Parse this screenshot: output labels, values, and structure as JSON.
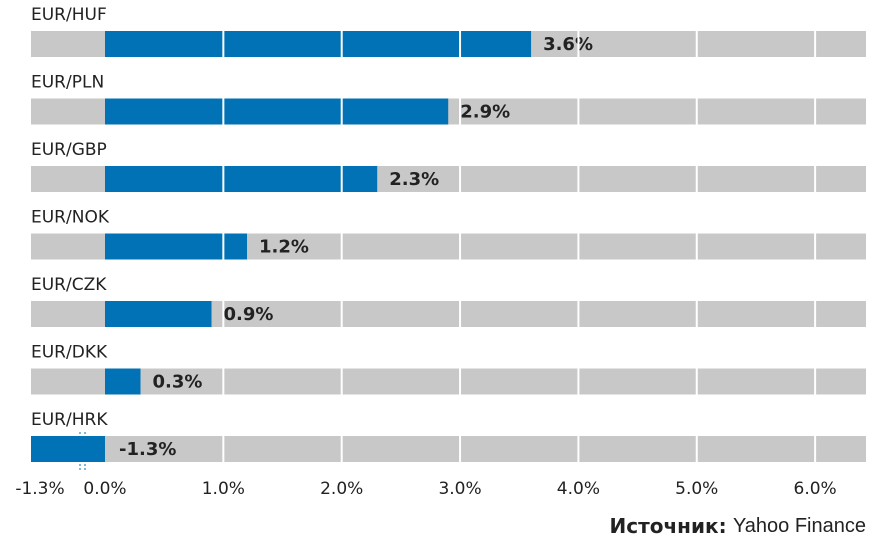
{
  "chart_data": {
    "type": "bar",
    "orientation": "horizontal",
    "categories": [
      "EUR/HUF",
      "EUR/PLN",
      "EUR/GBP",
      "EUR/NOK",
      "EUR/CZK",
      "EUR/DKK",
      "EUR/HRK"
    ],
    "values": [
      3.6,
      2.9,
      2.3,
      1.2,
      0.9,
      0.3,
      -1.3
    ],
    "value_labels": [
      "3.6%",
      "2.9%",
      "2.3%",
      "1.2%",
      "0.9%",
      "0.3%",
      "-1.3%"
    ],
    "color": "#0072b5",
    "track_color": "#c8c8c8",
    "label_color": "#1f6fa6",
    "axis_break": true,
    "xlim": [
      -1.3,
      6.43
    ],
    "xticks": [
      {
        "value": -1.3,
        "label": "-1.3%"
      },
      {
        "value": 0,
        "label": "0.0%"
      },
      {
        "value": 1,
        "label": "1.0%"
      },
      {
        "value": 2,
        "label": "2.0%"
      },
      {
        "value": 3,
        "label": "3.0%"
      },
      {
        "value": 4,
        "label": "4.0%"
      },
      {
        "value": 5,
        "label": "5.0%"
      },
      {
        "value": 6,
        "label": "6.0%"
      }
    ],
    "grid": true,
    "source": {
      "label": "Источник:",
      "name": "Yahoo Finance"
    }
  }
}
